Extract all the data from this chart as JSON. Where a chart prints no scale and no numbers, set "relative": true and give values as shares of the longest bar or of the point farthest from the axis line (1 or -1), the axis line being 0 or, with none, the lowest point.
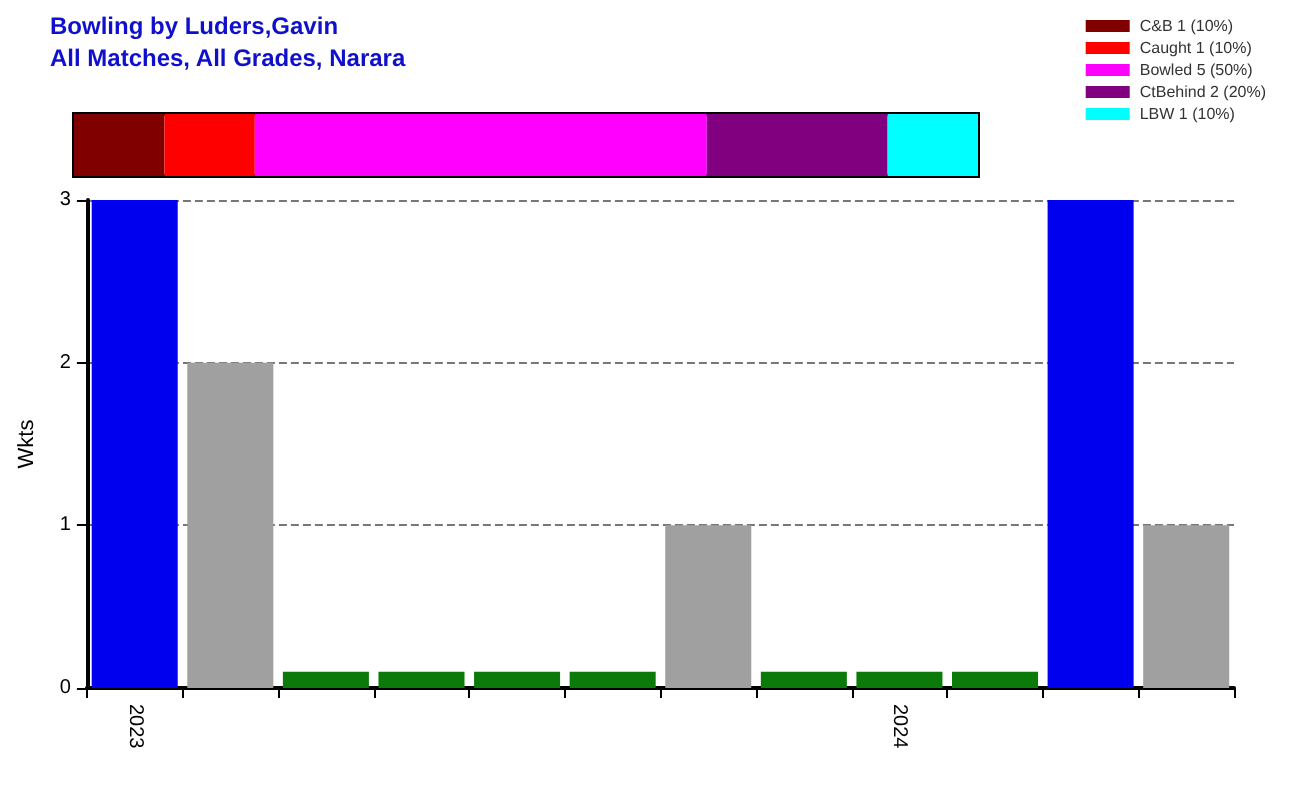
{
  "chart_data": [
    {
      "type": "bar",
      "title": "Bowling by Luders,Gavin",
      "subtitle": "All Matches, All Grades, Narara",
      "orientation": "horizontal",
      "stacked": true,
      "categories": [
        null
      ],
      "relative": true,
      "legend": "top right",
      "series": [
        {
          "name": "C&B 1 (10%)",
          "color": "#800000",
          "values": [
            0.1
          ]
        },
        {
          "name": "Caught 1 (10%)",
          "color": "#ff0000",
          "values": [
            0.1
          ]
        },
        {
          "name": "Bowled 5 (50%)",
          "color": "#ff00ff",
          "values": [
            0.5
          ]
        },
        {
          "name": "CtBehind 2 (20%)",
          "color": "#800080",
          "values": [
            0.2
          ]
        },
        {
          "name": "LBW 1 (10%)",
          "color": "#00ffff",
          "values": [
            0.1
          ]
        }
      ]
    },
    {
      "type": "bar",
      "ylabel": "Wkts",
      "categories": [
        "2023",
        null,
        null,
        null,
        null,
        null,
        null,
        null,
        "2024",
        null,
        null,
        null
      ],
      "values": [
        3,
        2,
        0.1,
        0.1,
        0.1,
        0.1,
        1,
        0.1,
        0.1,
        0.1,
        3,
        1
      ],
      "colors": [
        "#0000ee",
        "#a0a0a0",
        "#0b7a0b",
        "#0b7a0b",
        "#0b7a0b",
        "#0b7a0b",
        "#a0a0a0",
        "#0b7a0b",
        "#0b7a0b",
        "#0b7a0b",
        "#0000ee",
        "#a0a0a0"
      ],
      "ylim": [
        0,
        3
      ],
      "yticks": [
        0,
        1,
        2,
        3
      ],
      "grid": "y"
    }
  ]
}
